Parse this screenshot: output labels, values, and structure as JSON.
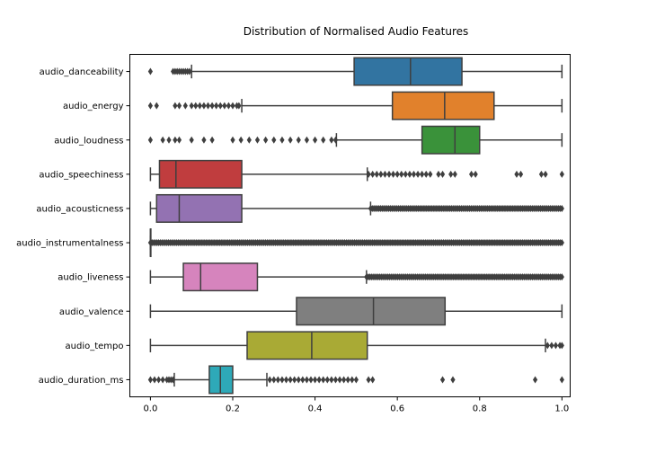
{
  "chart_data": {
    "type": "boxplot",
    "orientation": "horizontal",
    "title": "Distribution of Normalised Audio Features",
    "xlabel": "",
    "ylabel": "",
    "xlim": [
      -0.05,
      1.02
    ],
    "xticks": [
      "0.0",
      "0.2",
      "0.4",
      "0.6",
      "0.8",
      "1.0"
    ],
    "grid": false,
    "series": [
      {
        "name": "audio_danceability",
        "color": "#3274a1",
        "whisker_low": 0.1,
        "q1": 0.495,
        "median": 0.632,
        "q3": 0.757,
        "whisker_high": 1.0,
        "outliers": [
          0.0,
          0.055,
          0.06,
          0.065,
          0.07,
          0.075,
          0.08,
          0.085,
          0.09,
          0.095
        ]
      },
      {
        "name": "audio_energy",
        "color": "#e1812c",
        "whisker_low": 0.222,
        "q1": 0.588,
        "median": 0.715,
        "q3": 0.835,
        "whisker_high": 1.0,
        "outliers": [
          0.0,
          0.015,
          0.06,
          0.07,
          0.085,
          0.1,
          0.11,
          0.12,
          0.13,
          0.14,
          0.15,
          0.16,
          0.17,
          0.18,
          0.19,
          0.2,
          0.21,
          0.215
        ]
      },
      {
        "name": "audio_loudness",
        "color": "#3a923a",
        "whisker_low": 0.452,
        "q1": 0.66,
        "median": 0.74,
        "q3": 0.8,
        "whisker_high": 1.0,
        "outliers": [
          0.0,
          0.03,
          0.045,
          0.06,
          0.07,
          0.1,
          0.13,
          0.15,
          0.2,
          0.22,
          0.24,
          0.26,
          0.28,
          0.3,
          0.32,
          0.34,
          0.36,
          0.38,
          0.4,
          0.42,
          0.44,
          0.45
        ]
      },
      {
        "name": "audio_speechiness",
        "color": "#c03d3e",
        "whisker_low": 0.0,
        "q1": 0.022,
        "median": 0.062,
        "q3": 0.222,
        "whisker_high": 0.527,
        "outliers": [
          0.53,
          0.54,
          0.55,
          0.56,
          0.57,
          0.58,
          0.59,
          0.6,
          0.61,
          0.62,
          0.63,
          0.64,
          0.65,
          0.66,
          0.67,
          0.68,
          0.7,
          0.71,
          0.73,
          0.74,
          0.78,
          0.79,
          0.89,
          0.9,
          0.95,
          0.96,
          1.0
        ]
      },
      {
        "name": "audio_acousticness",
        "color": "#9372b2",
        "whisker_low": 0.0,
        "q1": 0.015,
        "median": 0.07,
        "q3": 0.222,
        "whisker_high": 0.535,
        "outliers_range": [
          0.535,
          1.0
        ]
      },
      {
        "name": "audio_instrumentalness",
        "color": "#845b53",
        "whisker_low": 0.0,
        "q1": 0.0,
        "median": 0.0,
        "q3": 0.0,
        "whisker_high": 0.0,
        "outliers_range": [
          0.0,
          1.0
        ]
      },
      {
        "name": "audio_liveness",
        "color": "#d684bd",
        "whisker_low": 0.0,
        "q1": 0.08,
        "median": 0.122,
        "q3": 0.26,
        "whisker_high": 0.525,
        "outliers_range": [
          0.525,
          1.0
        ]
      },
      {
        "name": "audio_valence",
        "color": "#7f7f7f",
        "whisker_low": 0.0,
        "q1": 0.355,
        "median": 0.542,
        "q3": 0.716,
        "whisker_high": 1.0,
        "outliers": []
      },
      {
        "name": "audio_tempo",
        "color": "#a9aa35",
        "whisker_low": 0.0,
        "q1": 0.235,
        "median": 0.392,
        "q3": 0.527,
        "whisker_high": 0.96,
        "outliers": [
          0.965,
          0.975,
          0.985,
          0.995,
          1.0
        ]
      },
      {
        "name": "audio_duration_ms",
        "color": "#2ea9b8",
        "whisker_low": 0.058,
        "q1": 0.143,
        "median": 0.17,
        "q3": 0.2,
        "whisker_high": 0.283,
        "outliers": [
          0.0,
          0.01,
          0.02,
          0.03,
          0.04,
          0.045,
          0.05,
          0.055,
          0.29,
          0.3,
          0.31,
          0.32,
          0.33,
          0.34,
          0.35,
          0.36,
          0.37,
          0.38,
          0.39,
          0.4,
          0.41,
          0.42,
          0.43,
          0.44,
          0.45,
          0.46,
          0.47,
          0.48,
          0.49,
          0.5,
          0.53,
          0.54,
          0.71,
          0.735,
          0.935,
          1.0
        ]
      }
    ]
  }
}
